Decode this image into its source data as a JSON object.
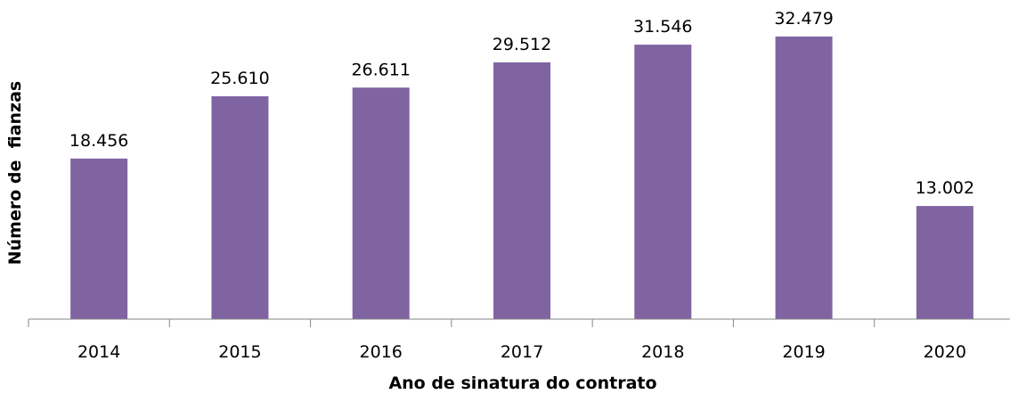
{
  "chart_data": {
    "type": "bar",
    "title": "",
    "xlabel": "Ano de sinatura do contrato",
    "ylabel": "Número de  fianzas",
    "categories": [
      "2014",
      "2015",
      "2016",
      "2017",
      "2018",
      "2019",
      "2020"
    ],
    "values": [
      18456,
      25610,
      26611,
      29512,
      31546,
      32479,
      13002
    ],
    "value_labels": [
      "18.456",
      "25.610",
      "26.611",
      "29.512",
      "31.546",
      "32.479",
      "13.002"
    ],
    "ylim": [
      0,
      35000
    ],
    "grid": false,
    "legend": "none",
    "bar_color": "#8064A2",
    "axis_color": "#868686"
  }
}
